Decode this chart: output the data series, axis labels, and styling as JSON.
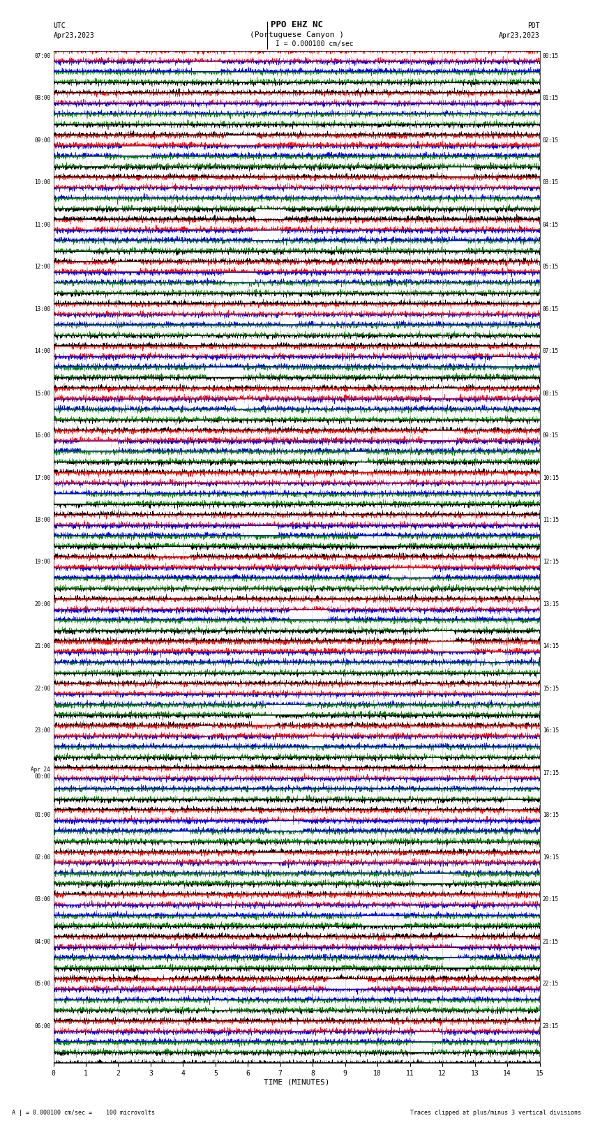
{
  "title_line1": "PPO EHZ NC",
  "title_line2": "(Portuguese Canyon )",
  "title_line3": "I = 0.000100 cm/sec",
  "left_label_line1": "UTC",
  "left_label_line2": "Apr23,2023",
  "right_label_line1": "PDT",
  "right_label_line2": "Apr23,2023",
  "xlabel": "TIME (MINUTES)",
  "bottom_left_text": "A | = 0.000100 cm/sec =    100 microvolts",
  "bottom_right_text": "Traces clipped at plus/minus 3 vertical divisions",
  "figure_bg_color": "#ffffff",
  "trace_colors": [
    "#ff0000",
    "#0000ff",
    "#008000",
    "#000000"
  ],
  "num_rows": 96,
  "xlim": [
    0,
    15
  ],
  "xticks": [
    0,
    1,
    2,
    3,
    4,
    5,
    6,
    7,
    8,
    9,
    10,
    11,
    12,
    13,
    14,
    15
  ],
  "figwidth": 8.5,
  "figheight": 16.13,
  "dpi": 100,
  "left_time_labels": [
    "07:00",
    "",
    "",
    "",
    "08:00",
    "",
    "",
    "",
    "09:00",
    "",
    "",
    "",
    "10:00",
    "",
    "",
    "",
    "11:00",
    "",
    "",
    "",
    "12:00",
    "",
    "",
    "",
    "13:00",
    "",
    "",
    "",
    "14:00",
    "",
    "",
    "",
    "15:00",
    "",
    "",
    "",
    "16:00",
    "",
    "",
    "",
    "17:00",
    "",
    "",
    "",
    "18:00",
    "",
    "",
    "",
    "19:00",
    "",
    "",
    "",
    "20:00",
    "",
    "",
    "",
    "21:00",
    "",
    "",
    "",
    "22:00",
    "",
    "",
    "",
    "23:00",
    "",
    "",
    "",
    "Apr 24\n00:00",
    "",
    "",
    "",
    "01:00",
    "",
    "",
    "",
    "02:00",
    "",
    "",
    "",
    "03:00",
    "",
    "",
    "",
    "04:00",
    "",
    "",
    "",
    "05:00",
    "",
    "",
    "",
    "06:00",
    "",
    "",
    ""
  ],
  "right_time_labels": [
    "00:15",
    "",
    "",
    "",
    "01:15",
    "",
    "",
    "",
    "02:15",
    "",
    "",
    "",
    "03:15",
    "",
    "",
    "",
    "04:15",
    "",
    "",
    "",
    "05:15",
    "",
    "",
    "",
    "06:15",
    "",
    "",
    "",
    "07:15",
    "",
    "",
    "",
    "08:15",
    "",
    "",
    "",
    "09:15",
    "",
    "",
    "",
    "10:15",
    "",
    "",
    "",
    "11:15",
    "",
    "",
    "",
    "12:15",
    "",
    "",
    "",
    "13:15",
    "",
    "",
    "",
    "14:15",
    "",
    "",
    "",
    "15:15",
    "",
    "",
    "",
    "16:15",
    "",
    "",
    "",
    "17:15",
    "",
    "",
    "",
    "18:15",
    "",
    "",
    "",
    "19:15",
    "",
    "",
    "",
    "20:15",
    "",
    "",
    "",
    "21:15",
    "",
    "",
    "",
    "22:15",
    "",
    "",
    "",
    "23:15",
    "",
    "",
    ""
  ]
}
